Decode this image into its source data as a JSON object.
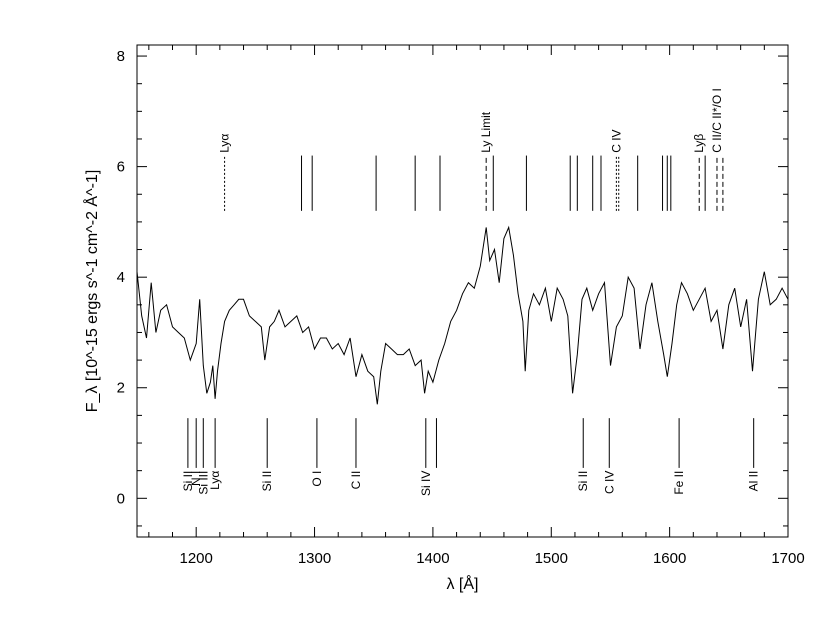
{
  "chart_data": {
    "type": "line",
    "title": "",
    "xlabel": "λ [Å]",
    "ylabel": "F_λ [10^-15 ergs s^-1 cm^-2 Å^-1]",
    "xlim": [
      1150,
      1700
    ],
    "ylim": [
      -0.7,
      8.2
    ],
    "x_ticks": [
      1200,
      1300,
      1400,
      1500,
      1600,
      1700
    ],
    "y_ticks": [
      0,
      2,
      4,
      6,
      8
    ],
    "grid": false,
    "legend": "none",
    "series": [
      {
        "x": [
          1150,
          1154,
          1158,
          1162,
          1166,
          1170,
          1175,
          1180,
          1185,
          1190,
          1195,
          1200,
          1203,
          1206,
          1209,
          1212,
          1214,
          1216,
          1218,
          1221,
          1224,
          1228,
          1232,
          1236,
          1240,
          1245,
          1250,
          1255,
          1258,
          1262,
          1266,
          1270,
          1275,
          1280,
          1285,
          1290,
          1295,
          1300,
          1305,
          1310,
          1315,
          1320,
          1325,
          1330,
          1335,
          1340,
          1345,
          1350,
          1353,
          1356,
          1360,
          1365,
          1370,
          1375,
          1380,
          1385,
          1390,
          1393,
          1396,
          1400,
          1405,
          1410,
          1415,
          1420,
          1425,
          1430,
          1435,
          1440,
          1445,
          1448,
          1452,
          1456,
          1460,
          1464,
          1468,
          1472,
          1476,
          1478,
          1481,
          1485,
          1490,
          1495,
          1500,
          1505,
          1510,
          1514,
          1518,
          1522,
          1526,
          1530,
          1535,
          1540,
          1545,
          1550,
          1555,
          1560,
          1565,
          1570,
          1575,
          1580,
          1585,
          1590,
          1595,
          1598,
          1602,
          1606,
          1610,
          1615,
          1620,
          1625,
          1630,
          1635,
          1640,
          1645,
          1650,
          1655,
          1660,
          1665,
          1670,
          1675,
          1680,
          1685,
          1690,
          1695,
          1700
        ],
        "y": [
          4.1,
          3.3,
          2.9,
          3.9,
          3.0,
          3.4,
          3.5,
          3.1,
          3.0,
          2.9,
          2.5,
          2.8,
          3.6,
          2.4,
          1.9,
          2.1,
          2.4,
          1.8,
          2.3,
          2.8,
          3.2,
          3.4,
          3.5,
          3.6,
          3.6,
          3.3,
          3.2,
          3.1,
          2.5,
          3.1,
          3.2,
          3.4,
          3.1,
          3.2,
          3.3,
          3.0,
          3.1,
          2.7,
          2.9,
          2.9,
          2.7,
          2.8,
          2.6,
          2.9,
          2.2,
          2.6,
          2.3,
          2.2,
          1.7,
          2.3,
          2.8,
          2.7,
          2.6,
          2.6,
          2.7,
          2.4,
          2.5,
          1.9,
          2.3,
          2.1,
          2.5,
          2.8,
          3.2,
          3.4,
          3.7,
          3.9,
          3.8,
          4.2,
          4.9,
          4.3,
          4.5,
          3.9,
          4.7,
          4.9,
          4.4,
          3.7,
          3.2,
          2.3,
          3.4,
          3.7,
          3.5,
          3.8,
          3.2,
          3.8,
          3.6,
          3.3,
          1.9,
          2.6,
          3.6,
          3.8,
          3.4,
          3.7,
          3.9,
          2.4,
          3.1,
          3.3,
          4.0,
          3.8,
          2.7,
          3.5,
          3.9,
          3.2,
          2.6,
          2.2,
          2.8,
          3.5,
          3.9,
          3.7,
          3.4,
          3.6,
          3.8,
          3.2,
          3.4,
          2.7,
          3.5,
          3.8,
          3.1,
          3.6,
          2.3,
          3.6,
          4.1,
          3.5,
          3.6,
          3.8,
          3.6
        ]
      }
    ],
    "annotations_top": [
      {
        "label": "Lyα",
        "x": 1224,
        "style": "dotted"
      },
      {
        "label": "",
        "x": 1289,
        "style": "solid"
      },
      {
        "label": "",
        "x": 1298,
        "style": "solid"
      },
      {
        "label": "",
        "x": 1352,
        "style": "solid"
      },
      {
        "label": "",
        "x": 1385,
        "style": "solid"
      },
      {
        "label": "",
        "x": 1406,
        "style": "solid"
      },
      {
        "label": "Ly Limit",
        "x": 1445,
        "style": "dashed"
      },
      {
        "label": "",
        "x": 1451,
        "style": "solid"
      },
      {
        "label": "",
        "x": 1479,
        "style": "solid"
      },
      {
        "label": "",
        "x": 1516,
        "style": "solid"
      },
      {
        "label": "",
        "x": 1522,
        "style": "solid"
      },
      {
        "label": "",
        "x": 1535,
        "style": "solid"
      },
      {
        "label": "",
        "x": 1542,
        "style": "solid"
      },
      {
        "label": "C IV",
        "x": 1555,
        "style": "dotted"
      },
      {
        "label": "",
        "x": 1557,
        "style": "dotted"
      },
      {
        "label": "",
        "x": 1573,
        "style": "solid"
      },
      {
        "label": "",
        "x": 1594,
        "style": "solid"
      },
      {
        "label": "",
        "x": 1598,
        "style": "solid"
      },
      {
        "label": "",
        "x": 1601,
        "style": "solid"
      },
      {
        "label": "Lyβ",
        "x": 1625,
        "style": "dashed"
      },
      {
        "label": "",
        "x": 1630,
        "style": "solid"
      },
      {
        "label": "C II/C II*/O I",
        "x": 1640,
        "style": "dashed"
      },
      {
        "label": "",
        "x": 1645,
        "style": "dashed"
      }
    ],
    "annotations_bottom": [
      {
        "label": "Si II",
        "x": 1193
      },
      {
        "label": "Si III",
        "x": 1206
      },
      {
        "label": "N I",
        "x": 1200
      },
      {
        "label": "Lyα",
        "x": 1216
      },
      {
        "label": "Si II",
        "x": 1260
      },
      {
        "label": "O I",
        "x": 1302
      },
      {
        "label": "C II",
        "x": 1335
      },
      {
        "label": "Si IV",
        "x": 1394
      },
      {
        "label": "",
        "x": 1403
      },
      {
        "label": "Si II",
        "x": 1527
      },
      {
        "label": "C IV",
        "x": 1549
      },
      {
        "label": "Fe II",
        "x": 1608
      },
      {
        "label": "Al II",
        "x": 1671
      }
    ]
  }
}
